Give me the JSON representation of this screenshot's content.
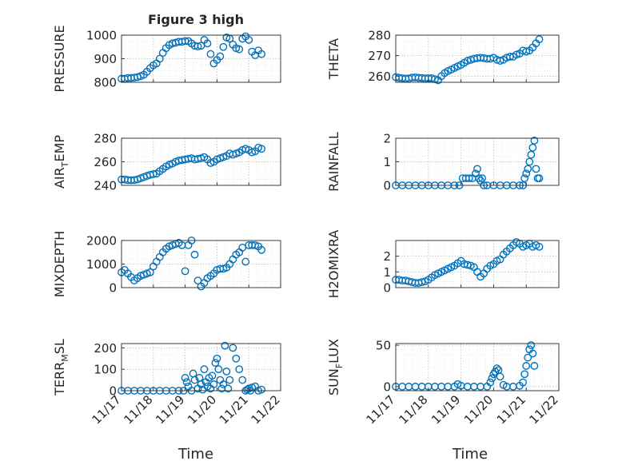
{
  "figure": {
    "title": "Figure 3 high",
    "x_ticks": [
      "11/17",
      "11/18",
      "11/19",
      "11/20",
      "11/21",
      "11/22"
    ],
    "x_label": "Time",
    "marker_color": "#0072bd",
    "grid": "dotted"
  },
  "chart_data": [
    {
      "type": "scatter",
      "id": "pressure",
      "ylabel": "PRESSURE",
      "ylim": [
        800,
        1000
      ],
      "yticks": [
        800,
        900,
        1000
      ],
      "xlim": [
        0,
        5
      ],
      "x": [
        0.0,
        0.1,
        0.2,
        0.3,
        0.4,
        0.5,
        0.6,
        0.7,
        0.8,
        0.9,
        1.0,
        1.1,
        1.2,
        1.3,
        1.4,
        1.5,
        1.6,
        1.7,
        1.8,
        1.9,
        2.0,
        2.1,
        2.2,
        2.3,
        2.4,
        2.5,
        2.6,
        2.7,
        2.8,
        2.9,
        3.0,
        3.1,
        3.2,
        3.3,
        3.4,
        3.5,
        3.6,
        3.7,
        3.8,
        3.9,
        4.0,
        4.1,
        4.2,
        4.3,
        4.4
      ],
      "y": [
        815,
        815,
        818,
        818,
        820,
        822,
        826,
        832,
        845,
        860,
        872,
        880,
        900,
        925,
        945,
        958,
        965,
        968,
        972,
        972,
        975,
        975,
        965,
        955,
        952,
        955,
        980,
        965,
        920,
        880,
        895,
        910,
        950,
        990,
        985,
        960,
        945,
        940,
        985,
        995,
        980,
        930,
        915,
        935,
        920
      ]
    },
    {
      "type": "scatter",
      "id": "theta",
      "ylabel": "THETA",
      "ylim": [
        257,
        280
      ],
      "yticks": [
        260,
        270,
        280
      ],
      "xlim": [
        0,
        5
      ],
      "x": [
        0.0,
        0.1,
        0.2,
        0.3,
        0.4,
        0.5,
        0.6,
        0.7,
        0.8,
        0.9,
        1.0,
        1.1,
        1.2,
        1.3,
        1.4,
        1.5,
        1.6,
        1.7,
        1.8,
        1.9,
        2.0,
        2.1,
        2.2,
        2.3,
        2.4,
        2.5,
        2.6,
        2.7,
        2.8,
        2.9,
        3.0,
        3.1,
        3.2,
        3.3,
        3.4,
        3.5,
        3.6,
        3.7,
        3.8,
        3.9,
        4.0,
        4.1,
        4.2,
        4.3,
        4.4
      ],
      "y": [
        259.5,
        259.2,
        259,
        258.8,
        258.9,
        259.3,
        259.4,
        259.2,
        259.1,
        258.9,
        259.0,
        259.0,
        258.5,
        258,
        260,
        261.5,
        262.5,
        263.2,
        264,
        264.8,
        265.5,
        266.5,
        267.5,
        268.0,
        268.5,
        268.8,
        269,
        268.8,
        268.5,
        268.5,
        269,
        268,
        267.5,
        268,
        269,
        269.5,
        269.5,
        270.5,
        271,
        272.5,
        272,
        272.5,
        274,
        276,
        278
      ]
    },
    {
      "type": "scatter",
      "id": "air_temp",
      "ylabel": "AIR_TEMP",
      "ylim": [
        240,
        280
      ],
      "yticks": [
        240,
        260,
        280
      ],
      "xlim": [
        0,
        5
      ],
      "x": [
        0.0,
        0.1,
        0.2,
        0.3,
        0.4,
        0.5,
        0.6,
        0.7,
        0.8,
        0.9,
        1.0,
        1.1,
        1.2,
        1.3,
        1.4,
        1.5,
        1.6,
        1.7,
        1.8,
        1.9,
        2.0,
        2.1,
        2.2,
        2.3,
        2.4,
        2.5,
        2.6,
        2.7,
        2.8,
        2.9,
        3.0,
        3.1,
        3.2,
        3.3,
        3.4,
        3.5,
        3.6,
        3.7,
        3.8,
        3.9,
        4.0,
        4.1,
        4.2,
        4.3,
        4.4
      ],
      "y": [
        245,
        245,
        244.5,
        244.3,
        244.5,
        245,
        246,
        247,
        248,
        249,
        249.5,
        250,
        252,
        254,
        256,
        257.5,
        258.5,
        260,
        261,
        261.5,
        262,
        262.5,
        263,
        262,
        262.5,
        263,
        264,
        262,
        259,
        260,
        262,
        263,
        264,
        265,
        267,
        266,
        267,
        268,
        270,
        271,
        270,
        268,
        269,
        272,
        271
      ]
    },
    {
      "type": "scatter",
      "id": "rainfall",
      "ylabel": "RAINFALL",
      "ylim": [
        0,
        2
      ],
      "yticks": [
        0,
        1,
        2
      ],
      "xlim": [
        0,
        5
      ],
      "x": [
        0.0,
        0.2,
        0.4,
        0.6,
        0.8,
        1.0,
        1.2,
        1.4,
        1.6,
        1.8,
        1.95,
        2.05,
        2.15,
        2.25,
        2.35,
        2.45,
        2.5,
        2.55,
        2.6,
        2.65,
        2.7,
        2.8,
        3.0,
        3.2,
        3.4,
        3.6,
        3.8,
        3.9,
        3.95,
        4.0,
        4.05,
        4.1,
        4.15,
        4.2,
        4.25,
        4.3,
        4.35,
        4.4
      ],
      "y": [
        0,
        0,
        0,
        0,
        0,
        0,
        0,
        0,
        0,
        0,
        0,
        0.3,
        0.3,
        0.3,
        0.3,
        0.5,
        0.7,
        0.3,
        0.2,
        0.3,
        0,
        0,
        0,
        0,
        0,
        0,
        0,
        0,
        0.3,
        0.5,
        0.7,
        1.0,
        1.3,
        1.6,
        1.9,
        0.7,
        0.3,
        0.3
      ]
    },
    {
      "type": "scatter",
      "id": "mixdepth",
      "ylabel": "MIXDEPTH",
      "ylim": [
        0,
        2000
      ],
      "yticks": [
        0,
        1000,
        2000
      ],
      "xlim": [
        0,
        5
      ],
      "x": [
        0.0,
        0.1,
        0.2,
        0.3,
        0.4,
        0.5,
        0.6,
        0.7,
        0.8,
        0.9,
        1.0,
        1.1,
        1.2,
        1.3,
        1.4,
        1.5,
        1.6,
        1.7,
        1.8,
        1.9,
        2.0,
        2.1,
        2.2,
        2.3,
        2.4,
        2.5,
        2.6,
        2.7,
        2.8,
        2.9,
        3.0,
        3.1,
        3.2,
        3.3,
        3.4,
        3.5,
        3.6,
        3.7,
        3.8,
        3.9,
        4.0,
        4.1,
        4.2,
        4.3,
        4.4
      ],
      "y": [
        650,
        750,
        600,
        450,
        300,
        400,
        500,
        550,
        600,
        650,
        900,
        1100,
        1300,
        1500,
        1650,
        1750,
        1800,
        1850,
        1900,
        1800,
        700,
        1800,
        2000,
        1400,
        300,
        50,
        200,
        400,
        500,
        600,
        750,
        800,
        800,
        850,
        1000,
        1200,
        1400,
        1500,
        1700,
        1100,
        1800,
        1800,
        1800,
        1750,
        1600
      ]
    },
    {
      "type": "scatter",
      "id": "h2omixra",
      "ylabel": "H2OMIXRA",
      "ylim": [
        0,
        3
      ],
      "yticks": [
        0,
        1,
        2
      ],
      "xlim": [
        0,
        5
      ],
      "x": [
        0.0,
        0.1,
        0.2,
        0.3,
        0.4,
        0.5,
        0.6,
        0.7,
        0.8,
        0.9,
        1.0,
        1.1,
        1.2,
        1.3,
        1.4,
        1.5,
        1.6,
        1.7,
        1.8,
        1.9,
        2.0,
        2.1,
        2.2,
        2.3,
        2.4,
        2.5,
        2.6,
        2.7,
        2.8,
        2.9,
        3.0,
        3.1,
        3.2,
        3.3,
        3.4,
        3.5,
        3.6,
        3.7,
        3.8,
        3.9,
        4.0,
        4.1,
        4.2,
        4.3,
        4.4
      ],
      "y": [
        0.5,
        0.5,
        0.45,
        0.45,
        0.4,
        0.35,
        0.3,
        0.3,
        0.35,
        0.4,
        0.5,
        0.65,
        0.8,
        0.9,
        1.0,
        1.1,
        1.2,
        1.3,
        1.4,
        1.55,
        1.7,
        1.5,
        1.45,
        1.4,
        1.3,
        1.0,
        0.7,
        0.9,
        1.2,
        1.4,
        1.5,
        1.7,
        1.8,
        2.1,
        2.3,
        2.5,
        2.7,
        2.9,
        2.8,
        2.6,
        2.7,
        2.8,
        2.6,
        2.7,
        2.6
      ]
    },
    {
      "type": "scatter",
      "id": "terr_msl",
      "ylabel": "TERR_MSL",
      "ylim": [
        0,
        220
      ],
      "yticks": [
        0,
        100,
        200
      ],
      "xlim": [
        0,
        5
      ],
      "x": [
        0.0,
        0.2,
        0.4,
        0.6,
        0.8,
        1.0,
        1.2,
        1.4,
        1.6,
        1.8,
        1.95,
        2.0,
        2.05,
        2.1,
        2.2,
        2.25,
        2.3,
        2.4,
        2.45,
        2.5,
        2.55,
        2.6,
        2.65,
        2.7,
        2.75,
        2.8,
        2.85,
        2.9,
        2.95,
        3.0,
        3.05,
        3.1,
        3.15,
        3.2,
        3.25,
        3.3,
        3.35,
        3.4,
        3.5,
        3.6,
        3.7,
        3.8,
        3.9,
        3.95,
        4.0,
        4.05,
        4.1,
        4.2,
        4.3,
        4.4
      ],
      "y": [
        0,
        0,
        0,
        0,
        0,
        0,
        0,
        0,
        0,
        0,
        0,
        60,
        40,
        20,
        0,
        80,
        50,
        10,
        60,
        30,
        5,
        100,
        40,
        20,
        60,
        10,
        70,
        30,
        130,
        150,
        100,
        50,
        10,
        30,
        210,
        90,
        10,
        50,
        200,
        150,
        100,
        50,
        0,
        5,
        10,
        0,
        15,
        20,
        0,
        5
      ]
    },
    {
      "type": "scatter",
      "id": "sun_flux",
      "ylabel": "SUN_FLUX",
      "ylim": [
        -5,
        52
      ],
      "yticks": [
        0,
        50
      ],
      "xlim": [
        0,
        5
      ],
      "x": [
        0.0,
        0.2,
        0.4,
        0.6,
        0.8,
        1.0,
        1.2,
        1.4,
        1.6,
        1.8,
        1.9,
        2.0,
        2.2,
        2.4,
        2.6,
        2.8,
        2.9,
        2.95,
        3.0,
        3.05,
        3.1,
        3.15,
        3.2,
        3.3,
        3.4,
        3.6,
        3.8,
        3.9,
        3.95,
        4.0,
        4.05,
        4.1,
        4.15,
        4.2,
        4.25
      ],
      "y": [
        0,
        0,
        0,
        0,
        0,
        0,
        0,
        0,
        0,
        0,
        3,
        1,
        0,
        0,
        0,
        0,
        5,
        10,
        15,
        18,
        22,
        20,
        12,
        2,
        0,
        0,
        1,
        5,
        15,
        25,
        35,
        45,
        50,
        40,
        25
      ]
    }
  ]
}
